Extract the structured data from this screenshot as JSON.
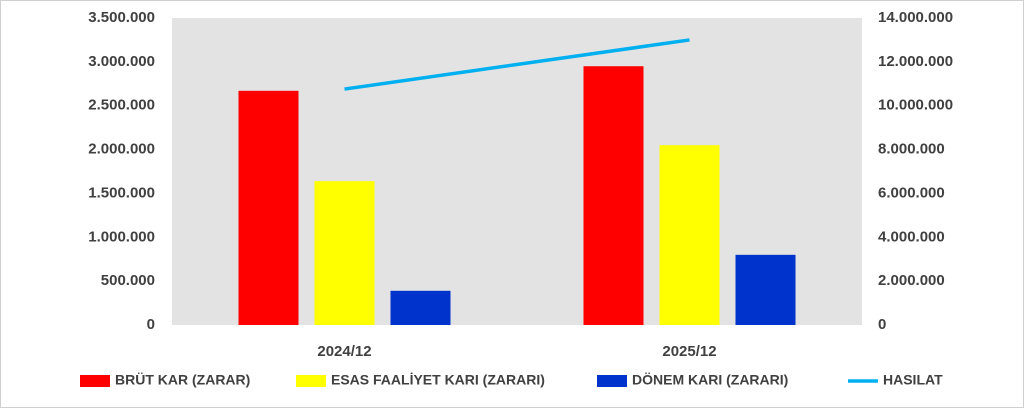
{
  "chart_data": {
    "type": "bar",
    "categories": [
      "2024/12",
      "2025/12"
    ],
    "series": [
      {
        "name": "BRÜT KAR (ZARAR)",
        "color": "#ff0000",
        "values": [
          2670000,
          2950000
        ]
      },
      {
        "name": "ESAS FAALİYET KARI (ZARARI)",
        "color": "#ffff00",
        "values": [
          1640000,
          2050000
        ]
      },
      {
        "name": "DÖNEM KARI (ZARARI)",
        "color": "#0033cc",
        "values": [
          390000,
          800000
        ]
      },
      {
        "name": "HASILAT",
        "color": "#00b0f0",
        "type": "line",
        "axis": "y2",
        "values": [
          10760000,
          13000000
        ]
      }
    ],
    "ylim": [
      0,
      3500000
    ],
    "yticks": [
      0,
      {
        "value": 500000,
        "label": "500.000"
      },
      {
        "value": 1000000,
        "label": "1.000.000"
      },
      {
        "value": 1500000,
        "label": "1.500.000"
      },
      {
        "value": 2000000,
        "label": "2.000.000"
      },
      {
        "value": 2500000,
        "label": "2.500.000"
      },
      {
        "value": 3000000,
        "label": "3.000.000"
      },
      {
        "value": 3500000,
        "label": "3.500.000"
      }
    ],
    "y2lim": [
      0,
      14000000
    ],
    "y2ticks": [
      0,
      {
        "value": 2000000,
        "label": "2.000.000"
      },
      {
        "value": 4000000,
        "label": "4.000.000"
      },
      {
        "value": 6000000,
        "label": "6.000.000"
      },
      {
        "value": 8000000,
        "label": "8.000.000"
      },
      {
        "value": 10000000,
        "label": "10.000.000"
      },
      {
        "value": 12000000,
        "label": "12.000.000"
      },
      {
        "value": 14000000,
        "label": "14.000.000"
      }
    ],
    "legend": "bottom"
  }
}
